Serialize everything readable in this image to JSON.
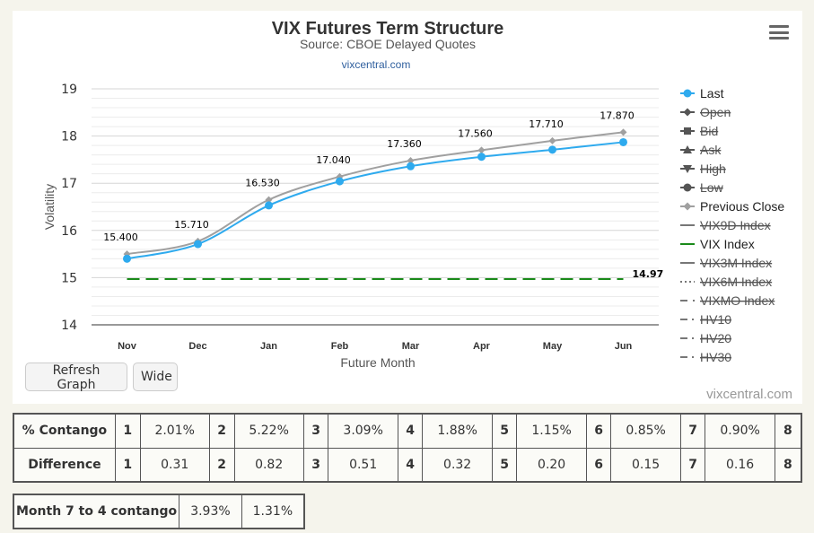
{
  "chart": {
    "title": "VIX Futures Term Structure",
    "subtitle": "Source: CBOE Delayed Quotes",
    "source_link": "vixcentral.com",
    "credit": "vixcentral.com",
    "menu_icon": "hamburger-menu-icon"
  },
  "chart_data": {
    "type": "line",
    "categories": [
      "Nov",
      "Dec",
      "Jan",
      "Feb",
      "Mar",
      "Apr",
      "May",
      "Jun"
    ],
    "ylabel": "Volatility",
    "xlabel": "Future Month",
    "ylim": [
      14,
      19
    ],
    "yticks": [
      14,
      15,
      16,
      17,
      18,
      19
    ],
    "grid": true,
    "series": [
      {
        "name": "Last",
        "color": "#2eaaee",
        "marker": "circle",
        "values": [
          15.4,
          15.71,
          16.53,
          17.04,
          17.36,
          17.56,
          17.71,
          17.87
        ],
        "data_labels": [
          "15.400",
          "15.710",
          "16.530",
          "17.040",
          "17.360",
          "17.560",
          "17.710",
          "17.870"
        ]
      },
      {
        "name": "Previous Close",
        "color": "#a0a0a0",
        "marker": "diamond",
        "values": [
          15.5,
          15.77,
          16.65,
          17.14,
          17.48,
          17.7,
          17.9,
          18.08
        ]
      },
      {
        "name": "VIX Index",
        "color": "#1a8a1a",
        "dash": "dashed",
        "values": [
          14.97,
          14.97,
          14.97,
          14.97,
          14.97,
          14.97,
          14.97,
          14.97
        ],
        "end_label": "14.97"
      }
    ],
    "legend": {
      "position": "right",
      "items": [
        {
          "name": "Last",
          "symbol": "circle-line",
          "color": "#2eaaee",
          "hidden": false
        },
        {
          "name": "Open",
          "symbol": "diamond-line",
          "color": "#555555",
          "hidden": true
        },
        {
          "name": "Bid",
          "symbol": "square-line",
          "color": "#555555",
          "hidden": true
        },
        {
          "name": "Ask",
          "symbol": "triangle-line",
          "color": "#555555",
          "hidden": true
        },
        {
          "name": "High",
          "symbol": "triangle-down-line",
          "color": "#555555",
          "hidden": true
        },
        {
          "name": "Low",
          "symbol": "circle-line",
          "color": "#555555",
          "hidden": true
        },
        {
          "name": "Previous Close",
          "symbol": "diamond-line",
          "color": "#a0a0a0",
          "hidden": false
        },
        {
          "name": "VIX9D Index",
          "symbol": "line",
          "color": "#777777",
          "hidden": true
        },
        {
          "name": "VIX Index",
          "symbol": "line",
          "color": "#1a8a1a",
          "hidden": false
        },
        {
          "name": "VIX3M Index",
          "symbol": "line",
          "color": "#777777",
          "hidden": true
        },
        {
          "name": "VIX6M Index",
          "symbol": "dotted",
          "color": "#777777",
          "hidden": true
        },
        {
          "name": "VIXMO Index",
          "symbol": "dashed",
          "color": "#777777",
          "hidden": true
        },
        {
          "name": "HV10",
          "symbol": "dash-dot",
          "color": "#777777",
          "hidden": true
        },
        {
          "name": "HV20",
          "symbol": "dash-dot",
          "color": "#777777",
          "hidden": true
        },
        {
          "name": "HV30",
          "symbol": "dash-dot",
          "color": "#777777",
          "hidden": true
        }
      ]
    }
  },
  "buttons": {
    "refresh": "Refresh Graph",
    "wide": "Wide"
  },
  "contango_table": {
    "rows": [
      {
        "label": "% Contango",
        "cells": [
          {
            "idx": "1",
            "val": "2.01%"
          },
          {
            "idx": "2",
            "val": "5.22%"
          },
          {
            "idx": "3",
            "val": "3.09%"
          },
          {
            "idx": "4",
            "val": "1.88%"
          },
          {
            "idx": "5",
            "val": "1.15%"
          },
          {
            "idx": "6",
            "val": "0.85%"
          },
          {
            "idx": "7",
            "val": "0.90%"
          }
        ],
        "last_idx": "8"
      },
      {
        "label": "Difference",
        "cells": [
          {
            "idx": "1",
            "val": "0.31"
          },
          {
            "idx": "2",
            "val": "0.82"
          },
          {
            "idx": "3",
            "val": "0.51"
          },
          {
            "idx": "4",
            "val": "0.32"
          },
          {
            "idx": "5",
            "val": "0.20"
          },
          {
            "idx": "6",
            "val": "0.15"
          },
          {
            "idx": "7",
            "val": "0.16"
          }
        ],
        "last_idx": "8"
      }
    ]
  },
  "month_table": {
    "label": "Month 7 to 4 contango",
    "val1": "3.93%",
    "val2": "1.31%"
  }
}
